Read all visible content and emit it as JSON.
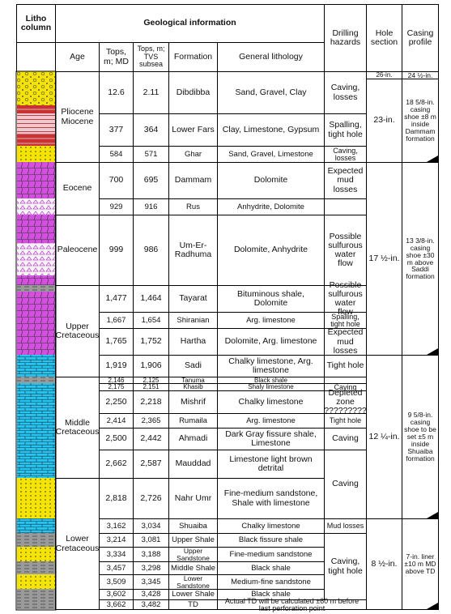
{
  "header": {
    "litho": "Litho column",
    "geo": "Geological information",
    "age": "Age",
    "tops_md": "Tops, m; MD",
    "tops_tvs": "Tops, m; TVS subsea",
    "formation": "Formation",
    "lithology": "General lithology",
    "hazards": "Drilling hazards",
    "hole": "Hole section",
    "casing": "Casing profile"
  },
  "ages": [
    "Pliocene Miocene",
    "Eocene",
    "Paleocene",
    "Upper Cretaceous",
    "Middle Cretaceous",
    "Lower Cretaceous"
  ],
  "formations": [
    {
      "md": "12.6",
      "tvs": "2.11",
      "name": "Dibdibba",
      "lithology": "Sand, Gravel, Clay"
    },
    {
      "md": "377",
      "tvs": "364",
      "name": "Lower Fars",
      "lithology": "Clay, Limestone, Gypsum"
    },
    {
      "md": "584",
      "tvs": "571",
      "name": "Ghar",
      "lithology": "Sand, Gravel, Limestone"
    },
    {
      "md": "700",
      "tvs": "695",
      "name": "Dammam",
      "lithology": "Dolomite"
    },
    {
      "md": "929",
      "tvs": "916",
      "name": "Rus",
      "lithology": "Anhydrite, Dolomite"
    },
    {
      "md": "999",
      "tvs": "986",
      "name": "Um-Er-Radhuma",
      "lithology": "Dolomite, Anhydrite"
    },
    {
      "md": "1,477",
      "tvs": "1,464",
      "name": "Tayarat",
      "lithology": "Bituminous shale, Dolomite"
    },
    {
      "md": "1,667",
      "tvs": "1,654",
      "name": "Shiranian",
      "lithology": "Arg. limestone"
    },
    {
      "md": "1,765",
      "tvs": "1,752",
      "name": "Hartha",
      "lithology": "Dolomite, Arg. limestone"
    },
    {
      "md": "1,919",
      "tvs": "1,906",
      "name": "Sadi",
      "lithology": "Chalky limestone, Arg. limestone"
    },
    {
      "md": "2,146",
      "tvs": "2,125",
      "name": "Tanuma",
      "lithology": "Black shale"
    },
    {
      "md": "2,175",
      "tvs": "2,151",
      "name": "Khasib",
      "lithology": "Shaly limestone"
    },
    {
      "md": "2,250",
      "tvs": "2,218",
      "name": "Mishrif",
      "lithology": "Chalky limestone"
    },
    {
      "md": "2,414",
      "tvs": "2,365",
      "name": "Rumaila",
      "lithology": "Arg. limestone"
    },
    {
      "md": "2,500",
      "tvs": "2,442",
      "name": "Ahmadi",
      "lithology": "Dark Gray fissure shale, Limestone"
    },
    {
      "md": "2,662",
      "tvs": "2,587",
      "name": "Mauddad",
      "lithology": "Limestone light brown detrital"
    },
    {
      "md": "2,818",
      "tvs": "2,726",
      "name": "Nahr Umr",
      "lithology": "Fine-medium sandstone, Shale with limestone"
    },
    {
      "md": "3,162",
      "tvs": "3,034",
      "name": "Shuaiba",
      "lithology": "Chalky limestone"
    },
    {
      "md": "3,214",
      "tvs": "3,081",
      "name": "Upper Shale",
      "lithology": "Black fissure shale"
    },
    {
      "md": "3,334",
      "tvs": "3,188",
      "name": "Upper Sandstone",
      "lithology": "Fine-medium sandstone"
    },
    {
      "md": "3,457",
      "tvs": "3,298",
      "name": "Middle Shale",
      "lithology": "Black shale"
    },
    {
      "md": "3,509",
      "tvs": "3,345",
      "name": "Lower Sandstone",
      "lithology": "Medium-fine sandstone"
    },
    {
      "md": "3,602",
      "tvs": "3,428",
      "name": "Lower Shale",
      "lithology": "Black shale"
    },
    {
      "md": "3,662",
      "tvs": "3,482",
      "name": "TD",
      "lithology": "Actual TD will be calculated ±60 m before last perforation point"
    }
  ],
  "hazards": [
    "Caving, losses",
    "Spalling, tight hole",
    "Caving, losses",
    "Expected mud losses",
    "Possible sulfurous water flow",
    "Possible sulfurous water flow",
    "Spalling, tight hole",
    "Expected mud losses",
    "Tight hole",
    "Caving",
    "Depleted zone ?????????",
    "Tight hole",
    "Caving",
    "Caving",
    "Mud losses",
    "Caving, tight hole"
  ],
  "hole_sections": [
    "26-in.",
    "23-in.",
    "17 ½-in.",
    "12 ¼-in.",
    "8 ½-in."
  ],
  "casing": [
    "24 ½-in.",
    "18 5/8-in. casing shoe ±8 m inside Dammam formation",
    "13 3/8-in. casing shoe ±30 m above Saddi formation",
    "9 5/8-in. casing shoe to be set ±5 m inside Shuaiba formation",
    "7-in. liner ±10 m MD above TD"
  ]
}
